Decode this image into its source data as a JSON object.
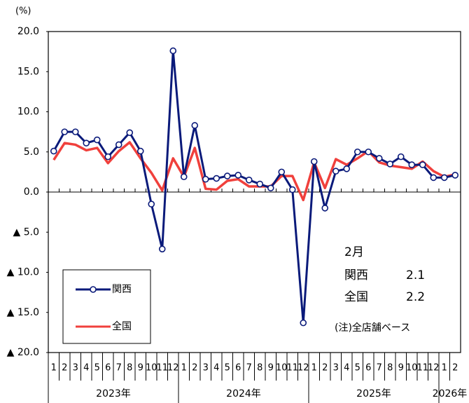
{
  "chart_data": {
    "type": "line",
    "unit": "(%)",
    "categories": [
      "1",
      "2",
      "3",
      "4",
      "5",
      "6",
      "7",
      "8",
      "9",
      "10",
      "11",
      "12",
      "1",
      "2",
      "3",
      "4",
      "5",
      "6",
      "7",
      "8",
      "9",
      "10",
      "11",
      "12",
      "1",
      "2",
      "3",
      "4",
      "5",
      "6",
      "7",
      "8",
      "9",
      "10",
      "11",
      "12",
      "1",
      "2"
    ],
    "years": [
      "2023年",
      "2024年",
      "2025年",
      "2026年"
    ],
    "series": [
      {
        "name": "関西",
        "color": "#0a1a7a",
        "marker": true,
        "values": [
          5.1,
          7.5,
          7.5,
          6.1,
          6.5,
          4.4,
          5.9,
          7.4,
          5.1,
          -1.5,
          -7.1,
          17.6,
          1.9,
          8.3,
          1.6,
          1.7,
          2.0,
          2.1,
          1.5,
          1.0,
          0.5,
          2.5,
          0.3,
          -16.3,
          3.8,
          -2.0,
          2.6,
          2.9,
          5.0,
          5.0,
          4.2,
          3.5,
          4.4,
          3.4,
          3.4,
          1.8,
          1.8,
          2.1
        ]
      },
      {
        "name": "全国",
        "color": "#f0403c",
        "marker": false,
        "values": [
          4.0,
          6.1,
          5.9,
          5.2,
          5.5,
          3.6,
          5.1,
          6.2,
          4.2,
          2.4,
          0.2,
          4.2,
          1.9,
          5.5,
          0.4,
          0.3,
          1.4,
          1.6,
          0.7,
          0.7,
          0.7,
          2.0,
          2.0,
          -1.0,
          3.7,
          0.5,
          4.1,
          3.4,
          4.2,
          5.1,
          3.7,
          3.3,
          3.1,
          2.9,
          3.8,
          2.6,
          1.9,
          2.2
        ]
      }
    ],
    "ylim": [
      -20,
      20
    ],
    "yticks": [
      {
        "value": 20,
        "label": "20.0"
      },
      {
        "value": 15,
        "label": "15.0"
      },
      {
        "value": 10,
        "label": "10.0"
      },
      {
        "value": 5,
        "label": "5.0"
      },
      {
        "value": 0,
        "label": "0.0"
      },
      {
        "value": -5,
        "label": "▲ 5.0"
      },
      {
        "value": -10,
        "label": "▲ 10.0"
      },
      {
        "value": -15,
        "label": "▲ 15.0"
      },
      {
        "value": -20,
        "label": "▲ 20.0"
      }
    ],
    "annotation": {
      "month": "2月",
      "rows": [
        {
          "name": "関西",
          "value": 2.1
        },
        {
          "name": "全国",
          "value": 2.2
        }
      ],
      "note": "(注)全店舗ベース"
    }
  }
}
